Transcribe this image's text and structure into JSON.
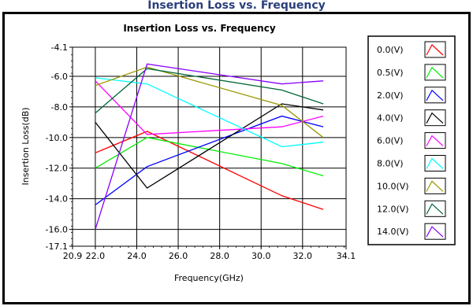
{
  "top_caption": "Insertion Loss vs. Frequency",
  "colors": {
    "grid": "#000000",
    "legend_box_bg": "#ffffff"
  },
  "chart_data": {
    "type": "line",
    "title": "Insertion Loss vs. Frequency",
    "xlabel": "Frequency(GHz)",
    "ylabel": "Insertion Loss(dB)",
    "xlim": [
      20.9,
      34.1
    ],
    "ylim": [
      -17.1,
      -4.1
    ],
    "x_ticks": [
      "20.9",
      "22.0",
      "24.0",
      "26.0",
      "28.0",
      "30.0",
      "32.0",
      "34.1"
    ],
    "y_ticks": [
      "-4.1",
      "-6.0",
      "-8.0",
      "-10.0",
      "-12.0",
      "-14.0",
      "-16.0",
      "-17.1"
    ],
    "grid": true,
    "legend_position": "right",
    "series": [
      {
        "name": "0.0(V)",
        "color": "#ff0000",
        "x": [
          22.0,
          24.5,
          31.0,
          33.0
        ],
        "y": [
          -11.0,
          -9.6,
          -13.8,
          -14.7
        ]
      },
      {
        "name": "0.5(V)",
        "color": "#00ee00",
        "x": [
          22.0,
          24.5,
          31.0,
          33.0
        ],
        "y": [
          -12.0,
          -10.0,
          -11.7,
          -12.5
        ]
      },
      {
        "name": "2.0(V)",
        "color": "#0000ff",
        "x": [
          22.0,
          24.5,
          31.0,
          33.0
        ],
        "y": [
          -14.4,
          -11.9,
          -8.6,
          -9.3
        ]
      },
      {
        "name": "4.0(V)",
        "color": "#000000",
        "x": [
          22.0,
          24.5,
          31.0,
          33.0
        ],
        "y": [
          -9.0,
          -13.3,
          -7.8,
          -8.2
        ]
      },
      {
        "name": "6.0(V)",
        "color": "#ff00ff",
        "x": [
          22.0,
          24.5,
          31.0,
          33.0
        ],
        "y": [
          -6.3,
          -9.8,
          -9.3,
          -8.6
        ]
      },
      {
        "name": "8.0(V)",
        "color": "#00ffff",
        "x": [
          22.0,
          24.5,
          31.0,
          33.0
        ],
        "y": [
          -6.1,
          -6.5,
          -10.6,
          -10.3
        ]
      },
      {
        "name": "10.0(V)",
        "color": "#999900",
        "x": [
          22.0,
          24.5,
          31.0,
          33.0
        ],
        "y": [
          -6.6,
          -5.4,
          -7.9,
          -10.0
        ]
      },
      {
        "name": "12.0(V)",
        "color": "#006633",
        "x": [
          22.0,
          24.5,
          31.0,
          33.0
        ],
        "y": [
          -8.4,
          -5.5,
          -6.9,
          -7.8
        ]
      },
      {
        "name": "14.0(V)",
        "color": "#8800ff",
        "x": [
          22.0,
          24.5,
          31.0,
          33.0
        ],
        "y": [
          -16.0,
          -5.2,
          -6.5,
          -6.3
        ]
      }
    ]
  }
}
